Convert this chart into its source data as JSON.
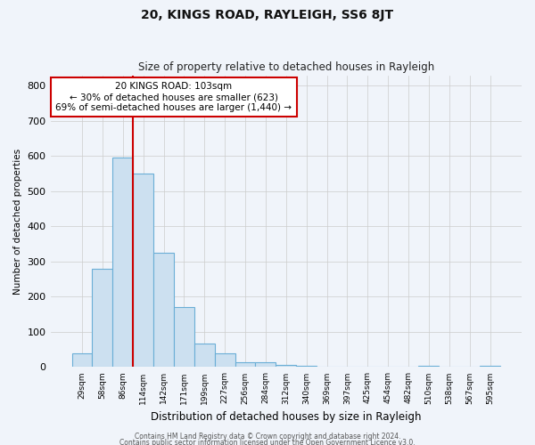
{
  "title": "20, KINGS ROAD, RAYLEIGH, SS6 8JT",
  "subtitle": "Size of property relative to detached houses in Rayleigh",
  "xlabel": "Distribution of detached houses by size in Rayleigh",
  "ylabel": "Number of detached properties",
  "bar_labels": [
    "29sqm",
    "58sqm",
    "86sqm",
    "114sqm",
    "142sqm",
    "171sqm",
    "199sqm",
    "227sqm",
    "256sqm",
    "284sqm",
    "312sqm",
    "340sqm",
    "369sqm",
    "397sqm",
    "425sqm",
    "454sqm",
    "482sqm",
    "510sqm",
    "538sqm",
    "567sqm",
    "595sqm"
  ],
  "bar_values": [
    38,
    280,
    595,
    550,
    325,
    170,
    67,
    38,
    15,
    13,
    5,
    3,
    0,
    0,
    0,
    0,
    0,
    3,
    0,
    0,
    3
  ],
  "bar_color": "#cce0f0",
  "bar_edge_color": "#6aaed6",
  "vline_x": 2.5,
  "vline_color": "#cc0000",
  "annotation_text": "20 KINGS ROAD: 103sqm\n← 30% of detached houses are smaller (623)\n69% of semi-detached houses are larger (1,440) →",
  "annotation_box_color": "#ffffff",
  "annotation_box_edge": "#cc0000",
  "ylim": [
    0,
    830
  ],
  "yticks": [
    0,
    100,
    200,
    300,
    400,
    500,
    600,
    700,
    800
  ],
  "grid_color": "#cccccc",
  "bg_color": "#f0f4fa",
  "footer_line1": "Contains HM Land Registry data © Crown copyright and database right 2024.",
  "footer_line2": "Contains public sector information licensed under the Open Government Licence v3.0."
}
